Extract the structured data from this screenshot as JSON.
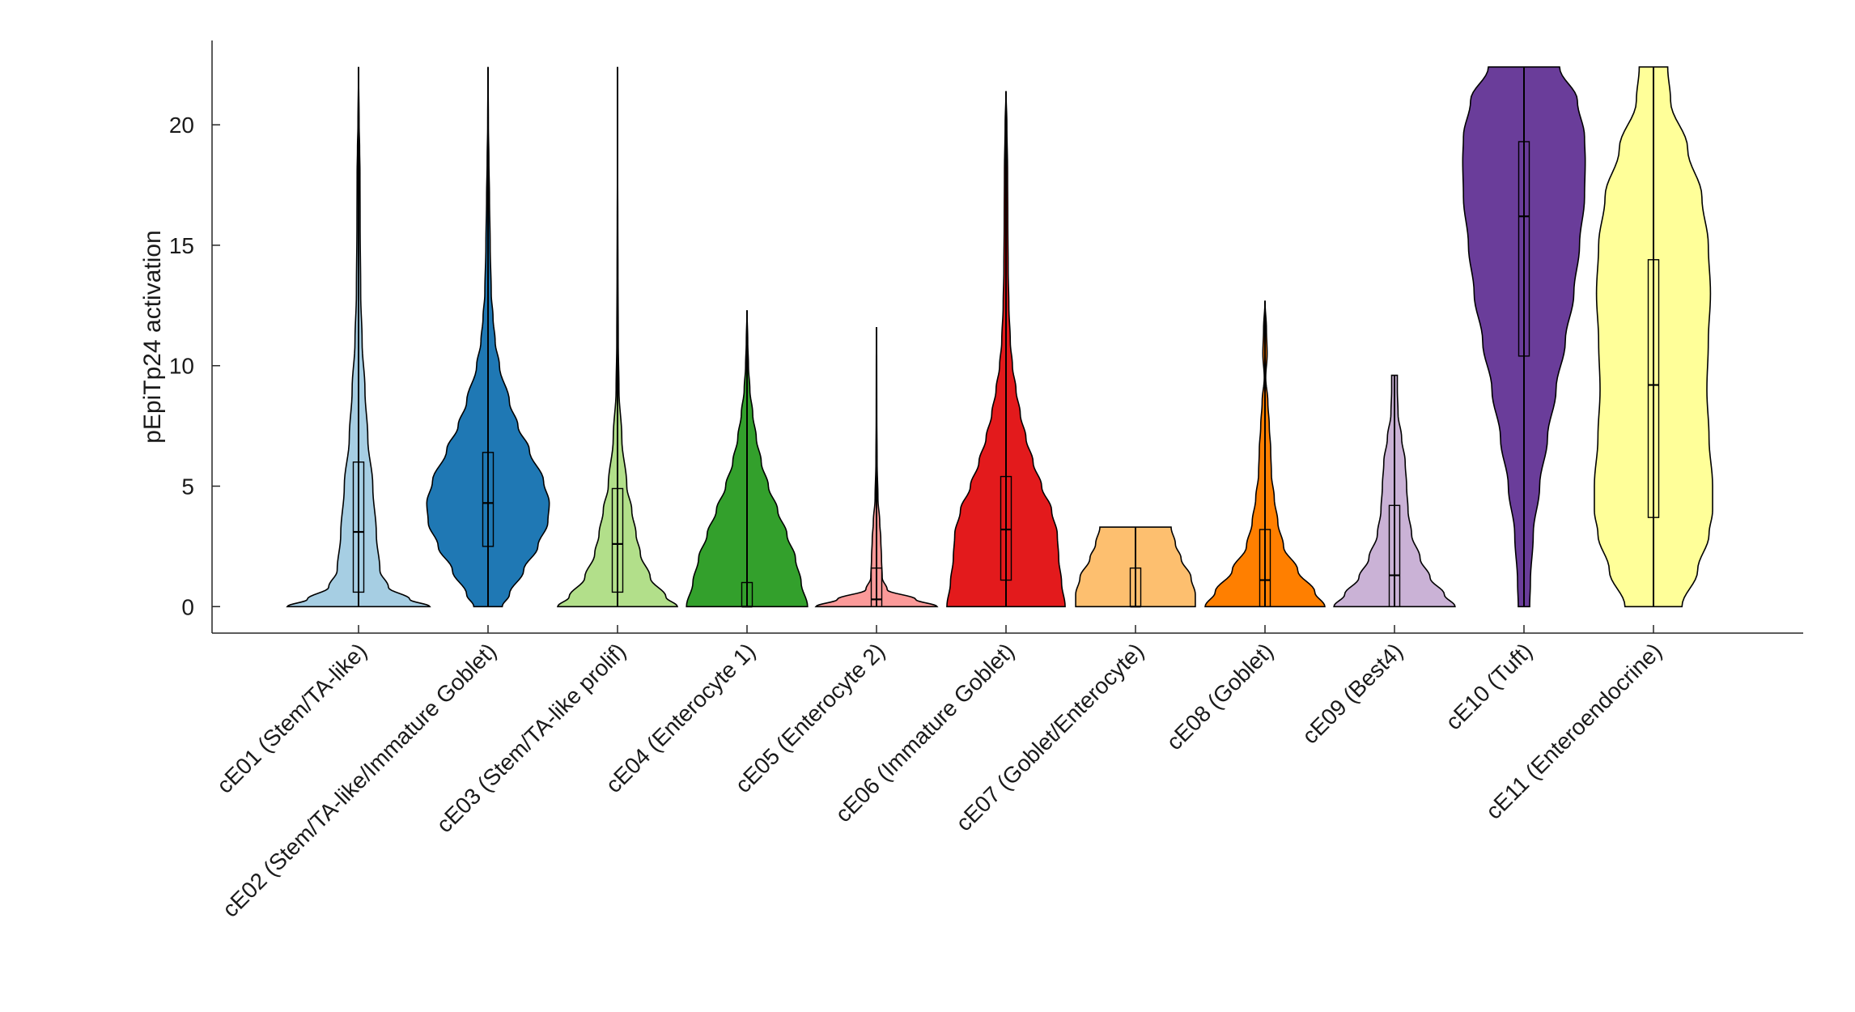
{
  "chart_data": {
    "type": "violin",
    "title": "",
    "xlabel": "",
    "ylabel": "pEpiTp24 activation",
    "ylim": [
      -1.1,
      23.5
    ],
    "yticks": [
      0,
      5,
      10,
      15,
      20
    ],
    "categories": [
      "cE01 (Stem/TA-like)",
      "cE02 (Stem/TA-like/Immature Goblet)",
      "cE03 (Stem/TA-like prolif)",
      "cE04 (Enterocyte 1)",
      "cE05 (Enterocyte 2)",
      "cE06 (Immature Goblet)",
      "cE07 (Goblet/Enterocyte)",
      "cE08 (Goblet)",
      "cE09 (Best4)",
      "cE10 (Tuft)",
      "cE11 (Enteroendocrine)"
    ],
    "colors": [
      "#a6cee3",
      "#1f78b4",
      "#b2df8a",
      "#33a02c",
      "#fb9a99",
      "#e31a1c",
      "#fdbf6f",
      "#ff7f00",
      "#cab2d6",
      "#6a3d9a",
      "#ffff99"
    ],
    "stats": [
      {
        "min": 0,
        "q1": 0.6,
        "median": 3.1,
        "q3": 6.0,
        "max": 22.4
      },
      {
        "min": 0,
        "q1": 2.5,
        "median": 4.3,
        "q3": 6.4,
        "max": 22.4
      },
      {
        "min": 0,
        "q1": 0.6,
        "median": 2.6,
        "q3": 4.9,
        "max": 22.4
      },
      {
        "min": 0,
        "q1": 0.0,
        "median": 0.0,
        "q3": 1.0,
        "max": 12.3
      },
      {
        "min": 0,
        "q1": 0.0,
        "median": 0.3,
        "q3": 1.6,
        "max": 11.6
      },
      {
        "min": 0,
        "q1": 1.1,
        "median": 3.2,
        "q3": 5.4,
        "max": 21.4
      },
      {
        "min": 0,
        "q1": 0.0,
        "median": 0.0,
        "q3": 1.6,
        "max": 3.3
      },
      {
        "min": 0,
        "q1": 0.0,
        "median": 1.1,
        "q3": 3.2,
        "max": 12.7
      },
      {
        "min": 0,
        "q1": 0.0,
        "median": 1.3,
        "q3": 4.2,
        "max": 9.6
      },
      {
        "min": 0,
        "q1": 10.4,
        "median": 16.2,
        "q3": 19.3,
        "max": 22.4
      },
      {
        "min": 0,
        "q1": 3.7,
        "median": 9.2,
        "q3": 14.4,
        "max": 22.4
      }
    ],
    "density": [
      [
        [
          0,
          1.0
        ],
        [
          0.3,
          0.72
        ],
        [
          0.8,
          0.42
        ],
        [
          1.5,
          0.3
        ],
        [
          3,
          0.25
        ],
        [
          5,
          0.2
        ],
        [
          7,
          0.13
        ],
        [
          9,
          0.09
        ],
        [
          11,
          0.05
        ],
        [
          13,
          0.03
        ],
        [
          16,
          0.022
        ],
        [
          18,
          0.02
        ],
        [
          19,
          0.015
        ],
        [
          20,
          0.008
        ],
        [
          22.4,
          0.0
        ]
      ],
      [
        [
          0,
          0.2
        ],
        [
          0.5,
          0.3
        ],
        [
          1.5,
          0.5
        ],
        [
          2.5,
          0.7
        ],
        [
          3.5,
          0.84
        ],
        [
          4.3,
          0.86
        ],
        [
          5.2,
          0.78
        ],
        [
          6.5,
          0.58
        ],
        [
          7.5,
          0.42
        ],
        [
          8.5,
          0.3
        ],
        [
          10,
          0.16
        ],
        [
          11,
          0.1
        ],
        [
          12,
          0.07
        ],
        [
          13,
          0.045
        ],
        [
          15,
          0.03
        ],
        [
          17,
          0.02
        ],
        [
          18.5,
          0.012
        ],
        [
          20,
          0.005
        ],
        [
          22.4,
          0.0
        ]
      ],
      [
        [
          0,
          0.84
        ],
        [
          0.4,
          0.68
        ],
        [
          1.2,
          0.46
        ],
        [
          2.2,
          0.32
        ],
        [
          3,
          0.26
        ],
        [
          4,
          0.2
        ],
        [
          5,
          0.13
        ],
        [
          7,
          0.06
        ],
        [
          9,
          0.02
        ],
        [
          11,
          0.01
        ],
        [
          14,
          0.006
        ],
        [
          16,
          0.004
        ],
        [
          18,
          0.002
        ],
        [
          22.4,
          0.0
        ]
      ],
      [
        [
          0,
          0.85
        ],
        [
          1,
          0.76
        ],
        [
          2,
          0.68
        ],
        [
          3,
          0.56
        ],
        [
          4,
          0.43
        ],
        [
          5,
          0.3
        ],
        [
          6,
          0.2
        ],
        [
          7,
          0.13
        ],
        [
          8,
          0.08
        ],
        [
          9,
          0.04
        ],
        [
          10,
          0.02
        ],
        [
          11,
          0.01
        ],
        [
          12.3,
          0.0
        ]
      ],
      [
        [
          0,
          0.85
        ],
        [
          0.3,
          0.55
        ],
        [
          0.7,
          0.15
        ],
        [
          1.2,
          0.08
        ],
        [
          2,
          0.07
        ],
        [
          2.8,
          0.06
        ],
        [
          3.5,
          0.045
        ],
        [
          4.5,
          0.02
        ],
        [
          6,
          0.008
        ],
        [
          8,
          0.004
        ],
        [
          10,
          0.003
        ],
        [
          11.6,
          0.0
        ]
      ],
      [
        [
          0,
          0.83
        ],
        [
          1,
          0.78
        ],
        [
          2,
          0.74
        ],
        [
          3,
          0.72
        ],
        [
          4,
          0.64
        ],
        [
          5,
          0.5
        ],
        [
          6,
          0.38
        ],
        [
          7,
          0.28
        ],
        [
          8,
          0.2
        ],
        [
          9,
          0.14
        ],
        [
          10,
          0.09
        ],
        [
          11,
          0.06
        ],
        [
          12.5,
          0.04
        ],
        [
          14,
          0.03
        ],
        [
          16,
          0.025
        ],
        [
          18,
          0.022
        ],
        [
          20,
          0.012
        ],
        [
          21.4,
          0.0
        ]
      ],
      [
        [
          0,
          0.84
        ],
        [
          0.5,
          0.84
        ],
        [
          1.2,
          0.78
        ],
        [
          2,
          0.64
        ],
        [
          2.6,
          0.56
        ],
        [
          3.3,
          0.5
        ]
      ],
      [
        [
          0,
          0.84
        ],
        [
          0.6,
          0.7
        ],
        [
          1.5,
          0.46
        ],
        [
          2.5,
          0.26
        ],
        [
          3.5,
          0.18
        ],
        [
          4.5,
          0.13
        ],
        [
          5.5,
          0.09
        ],
        [
          6.5,
          0.08
        ],
        [
          7.5,
          0.06
        ],
        [
          8.5,
          0.04
        ],
        [
          9.5,
          0.01
        ],
        [
          10.5,
          0.03
        ],
        [
          11.5,
          0.02
        ],
        [
          12.7,
          0.0
        ]
      ],
      [
        [
          0,
          0.85
        ],
        [
          0.5,
          0.7
        ],
        [
          1.2,
          0.5
        ],
        [
          2,
          0.36
        ],
        [
          3,
          0.24
        ],
        [
          4,
          0.19
        ],
        [
          5,
          0.17
        ],
        [
          6,
          0.15
        ],
        [
          7,
          0.1
        ],
        [
          8,
          0.05
        ],
        [
          9,
          0.04
        ],
        [
          9.6,
          0.04
        ]
      ],
      [
        [
          0,
          0.08
        ],
        [
          1,
          0.09
        ],
        [
          3,
          0.13
        ],
        [
          5,
          0.22
        ],
        [
          7,
          0.33
        ],
        [
          9,
          0.45
        ],
        [
          11,
          0.58
        ],
        [
          13,
          0.7
        ],
        [
          15,
          0.78
        ],
        [
          17,
          0.85
        ],
        [
          18.5,
          0.86
        ],
        [
          19.5,
          0.85
        ],
        [
          21,
          0.75
        ],
        [
          22.4,
          0.5
        ]
      ],
      [
        [
          0,
          0.4
        ],
        [
          1.5,
          0.62
        ],
        [
          3,
          0.78
        ],
        [
          4,
          0.83
        ],
        [
          5,
          0.83
        ],
        [
          7,
          0.78
        ],
        [
          9,
          0.75
        ],
        [
          11,
          0.77
        ],
        [
          13,
          0.8
        ],
        [
          15,
          0.77
        ],
        [
          17,
          0.68
        ],
        [
          19,
          0.48
        ],
        [
          21,
          0.24
        ],
        [
          22.4,
          0.2
        ]
      ]
    ]
  }
}
